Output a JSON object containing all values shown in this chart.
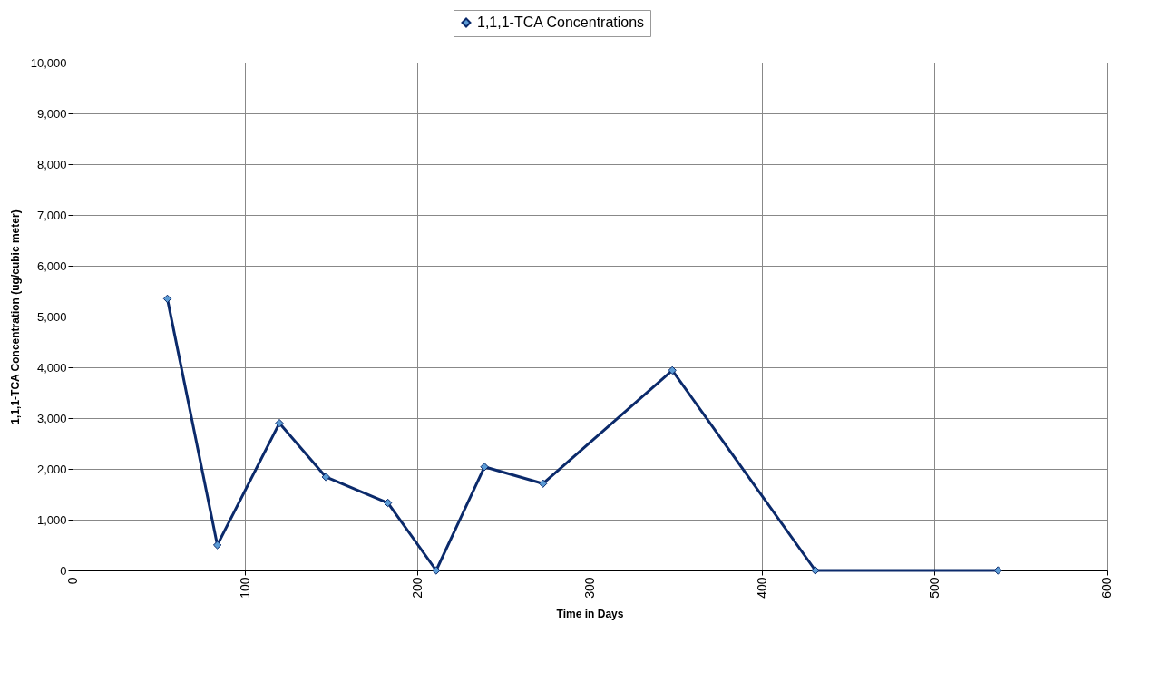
{
  "chart_data": {
    "type": "line",
    "xlabel": "Time in Days",
    "ylabel": "1,1,1-TCA Concentration (ug/cubic meter)",
    "x": [
      55,
      84,
      120,
      147,
      183,
      211,
      239,
      273,
      348,
      431,
      537
    ],
    "series": [
      {
        "name": "1,1,1-TCA Concentrations",
        "color": "#0b2a6b",
        "values": [
          5350,
          500,
          2900,
          1840,
          1330,
          0,
          2040,
          1710,
          3940,
          0,
          0
        ]
      }
    ],
    "xlim": [
      0,
      600
    ],
    "xticks": [
      0,
      100,
      200,
      300,
      400,
      500,
      600
    ],
    "ylim": [
      0,
      10000
    ],
    "yticks": [
      0,
      {
        "value": 1000,
        "label": "1,000"
      },
      {
        "value": 2000,
        "label": "2,000"
      },
      {
        "value": 3000,
        "label": "3,000"
      },
      {
        "value": 4000,
        "label": "4,000"
      },
      {
        "value": 5000,
        "label": "5,000"
      },
      {
        "value": 6000,
        "label": "6,000"
      },
      {
        "value": 7000,
        "label": "7,000"
      },
      {
        "value": 8000,
        "label": "8,000"
      },
      {
        "value": 9000,
        "label": "9,000"
      },
      {
        "value": 10000,
        "label": "10,000"
      }
    ],
    "grid": true,
    "legend": "top",
    "marker": "diamond",
    "line_style": "solid"
  }
}
